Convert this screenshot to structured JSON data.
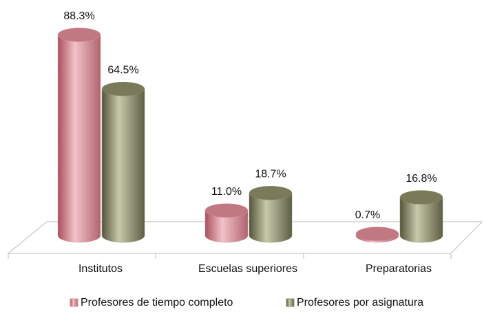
{
  "chart_data": {
    "type": "bar",
    "categories": [
      "Institutos",
      "Escuelas superiores",
      "Preparatorias"
    ],
    "series": [
      {
        "name": "Profesores de tiempo completo",
        "color": "#d9919b",
        "values": [
          88.3,
          11.0,
          0.7
        ],
        "value_labels": [
          "88.3%",
          "11.0%",
          "0.7%"
        ]
      },
      {
        "name": "Profesores por asignatura",
        "color": "#8c8c6c",
        "values": [
          64.5,
          18.7,
          16.8
        ],
        "value_labels": [
          "64.5%",
          "18.7%",
          "16.8%"
        ]
      }
    ],
    "legend": "bottom"
  }
}
